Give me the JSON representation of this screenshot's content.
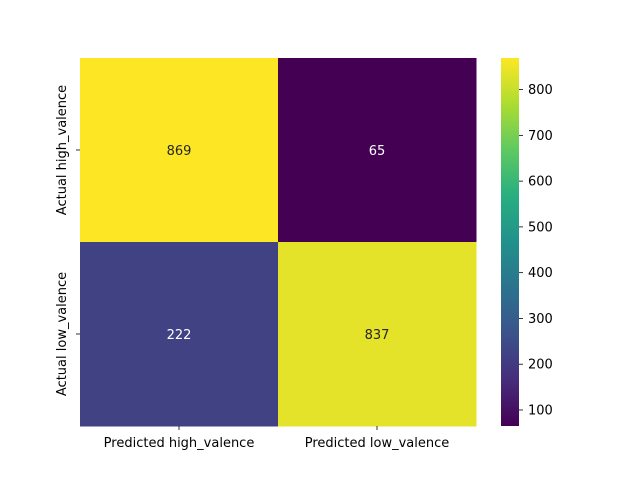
{
  "chart_data": {
    "type": "heatmap",
    "title": "",
    "xlabel": "",
    "ylabel": "",
    "x_categories": [
      "Predicted high_valence",
      "Predicted low_valence"
    ],
    "y_categories": [
      "Actual high_valence",
      "Actual low_valence"
    ],
    "values": [
      [
        869,
        65
      ],
      [
        222,
        837
      ]
    ],
    "colormap": "viridis",
    "colorbar": {
      "range": [
        65,
        869
      ],
      "ticks": [
        100,
        200,
        300,
        400,
        500,
        600,
        700,
        800
      ]
    },
    "annotations": true,
    "grid": false
  }
}
